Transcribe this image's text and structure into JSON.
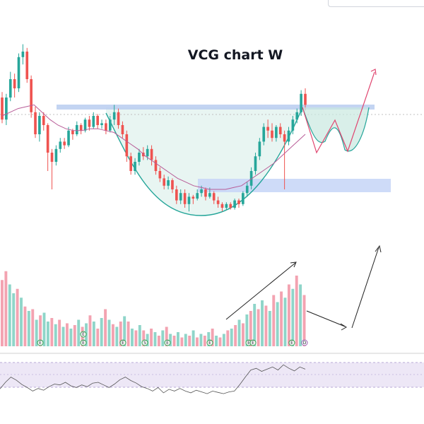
{
  "chart_data": {
    "type": "candlestick",
    "title": "VCG chart W",
    "colors": {
      "up": "#26a69a",
      "down": "#ef5350",
      "up_volume": "#8fd5c9",
      "down_volume": "#f3a3b1",
      "ma_line": "#b85c97",
      "resistance_zone": "#b9cdf0",
      "support_zone": "#c9d7f7",
      "cup_fill": "#e6f4f1",
      "cup_line": "#26a69a",
      "projection_fill": "#c9e8df",
      "projection_arrow": "#e0456f",
      "rsi_band": "#ede7f6",
      "rsi_line": "#555555"
    },
    "price": {
      "candles": [
        [
          0.7,
          0.58,
          0.73,
          0.56
        ],
        [
          0.58,
          0.7,
          0.72,
          0.55
        ],
        [
          0.7,
          0.8,
          0.84,
          0.68
        ],
        [
          0.8,
          0.75,
          0.83,
          0.7
        ],
        [
          0.75,
          0.92,
          0.94,
          0.73
        ],
        [
          0.92,
          0.95,
          0.99,
          0.88
        ],
        [
          0.95,
          0.8,
          0.97,
          0.78
        ],
        [
          0.8,
          0.62,
          0.82,
          0.59
        ],
        [
          0.62,
          0.5,
          0.65,
          0.48
        ],
        [
          0.5,
          0.6,
          0.62,
          0.46
        ],
        [
          0.6,
          0.55,
          0.62,
          0.52
        ],
        [
          0.55,
          0.4,
          0.56,
          0.3
        ],
        [
          0.4,
          0.35,
          0.42,
          0.2
        ],
        [
          0.35,
          0.42,
          0.44,
          0.33
        ],
        [
          0.42,
          0.46,
          0.48,
          0.4
        ],
        [
          0.46,
          0.44,
          0.48,
          0.42
        ],
        [
          0.44,
          0.52,
          0.54,
          0.43
        ],
        [
          0.52,
          0.5,
          0.53,
          0.47
        ],
        [
          0.5,
          0.55,
          0.57,
          0.49
        ],
        [
          0.55,
          0.52,
          0.56,
          0.5
        ],
        [
          0.52,
          0.58,
          0.59,
          0.51
        ],
        [
          0.58,
          0.54,
          0.6,
          0.52
        ],
        [
          0.54,
          0.6,
          0.62,
          0.53
        ],
        [
          0.6,
          0.55,
          0.61,
          0.53
        ],
        [
          0.55,
          0.56,
          0.58,
          0.53
        ],
        [
          0.56,
          0.52,
          0.58,
          0.5
        ],
        [
          0.52,
          0.58,
          0.6,
          0.51
        ],
        [
          0.58,
          0.62,
          0.66,
          0.55
        ],
        [
          0.62,
          0.55,
          0.64,
          0.53
        ],
        [
          0.55,
          0.5,
          0.57,
          0.48
        ],
        [
          0.5,
          0.38,
          0.52,
          0.35
        ],
        [
          0.38,
          0.3,
          0.4,
          0.28
        ],
        [
          0.3,
          0.35,
          0.37,
          0.28
        ],
        [
          0.35,
          0.4,
          0.42,
          0.33
        ],
        [
          0.4,
          0.38,
          0.43,
          0.36
        ],
        [
          0.38,
          0.42,
          0.44,
          0.36
        ],
        [
          0.42,
          0.36,
          0.44,
          0.33
        ],
        [
          0.36,
          0.3,
          0.38,
          0.28
        ],
        [
          0.3,
          0.26,
          0.32,
          0.24
        ],
        [
          0.26,
          0.22,
          0.28,
          0.2
        ],
        [
          0.22,
          0.25,
          0.27,
          0.2
        ],
        [
          0.25,
          0.2,
          0.26,
          0.18
        ],
        [
          0.2,
          0.14,
          0.22,
          0.12
        ],
        [
          0.14,
          0.18,
          0.2,
          0.12
        ],
        [
          0.18,
          0.12,
          0.2,
          0.1
        ],
        [
          0.12,
          0.16,
          0.18,
          0.08
        ],
        [
          0.16,
          0.15,
          0.17,
          0.12
        ],
        [
          0.15,
          0.18,
          0.2,
          0.14
        ],
        [
          0.18,
          0.2,
          0.22,
          0.16
        ],
        [
          0.2,
          0.16,
          0.21,
          0.14
        ],
        [
          0.16,
          0.18,
          0.21,
          0.15
        ],
        [
          0.18,
          0.14,
          0.19,
          0.12
        ],
        [
          0.14,
          0.12,
          0.16,
          0.1
        ],
        [
          0.12,
          0.1,
          0.13,
          0.08
        ],
        [
          0.1,
          0.12,
          0.13,
          0.09
        ],
        [
          0.12,
          0.1,
          0.13,
          0.09
        ],
        [
          0.1,
          0.14,
          0.15,
          0.09
        ],
        [
          0.14,
          0.12,
          0.15,
          0.1
        ],
        [
          0.12,
          0.18,
          0.19,
          0.11
        ],
        [
          0.18,
          0.22,
          0.24,
          0.16
        ],
        [
          0.22,
          0.3,
          0.32,
          0.2
        ],
        [
          0.3,
          0.38,
          0.4,
          0.28
        ],
        [
          0.38,
          0.46,
          0.48,
          0.36
        ],
        [
          0.46,
          0.54,
          0.56,
          0.44
        ],
        [
          0.54,
          0.52,
          0.58,
          0.48
        ],
        [
          0.52,
          0.48,
          0.56,
          0.46
        ],
        [
          0.48,
          0.54,
          0.55,
          0.46
        ],
        [
          0.54,
          0.5,
          0.56,
          0.48
        ],
        [
          0.5,
          0.46,
          0.52,
          0.2
        ],
        [
          0.46,
          0.52,
          0.54,
          0.44
        ],
        [
          0.52,
          0.58,
          0.6,
          0.5
        ],
        [
          0.58,
          0.62,
          0.64,
          0.56
        ],
        [
          0.62,
          0.72,
          0.74,
          0.6
        ],
        [
          0.72,
          0.66,
          0.75,
          0.63
        ]
      ],
      "moving_average": [
        0.6,
        0.62,
        0.64,
        0.65,
        0.66,
        0.62,
        0.58,
        0.55,
        0.53,
        0.52,
        0.52,
        0.53,
        0.53,
        0.52,
        0.51,
        0.48,
        0.45,
        0.42,
        0.38,
        0.35,
        0.32,
        0.29,
        0.26,
        0.24,
        0.22,
        0.21,
        0.2,
        0.2,
        0.2,
        0.21,
        0.22,
        0.25,
        0.28,
        0.31,
        0.34,
        0.38,
        0.42,
        0.46,
        0.5
      ]
    },
    "volume": {
      "bars": [
        [
          0.75,
          0
        ],
        [
          0.85,
          0
        ],
        [
          0.7,
          1
        ],
        [
          0.6,
          1
        ],
        [
          0.65,
          0
        ],
        [
          0.55,
          1
        ],
        [
          0.45,
          0
        ],
        [
          0.4,
          1
        ],
        [
          0.42,
          0
        ],
        [
          0.3,
          1
        ],
        [
          0.35,
          0
        ],
        [
          0.38,
          1
        ],
        [
          0.28,
          1
        ],
        [
          0.32,
          0
        ],
        [
          0.25,
          1
        ],
        [
          0.3,
          0
        ],
        [
          0.22,
          1
        ],
        [
          0.26,
          0
        ],
        [
          0.2,
          1
        ],
        [
          0.24,
          0
        ],
        [
          0.3,
          1
        ],
        [
          0.22,
          0
        ],
        [
          0.26,
          1
        ],
        [
          0.35,
          0
        ],
        [
          0.28,
          1
        ],
        [
          0.2,
          0
        ],
        [
          0.32,
          1
        ],
        [
          0.42,
          0
        ],
        [
          0.3,
          1
        ],
        [
          0.25,
          0
        ],
        [
          0.22,
          1
        ],
        [
          0.28,
          0
        ],
        [
          0.34,
          1
        ],
        [
          0.28,
          0
        ],
        [
          0.2,
          1
        ],
        [
          0.18,
          0
        ],
        [
          0.24,
          1
        ],
        [
          0.18,
          0
        ],
        [
          0.14,
          1
        ],
        [
          0.2,
          0
        ],
        [
          0.16,
          1
        ],
        [
          0.12,
          0
        ],
        [
          0.18,
          1
        ],
        [
          0.22,
          0
        ],
        [
          0.14,
          1
        ],
        [
          0.12,
          0
        ],
        [
          0.16,
          1
        ],
        [
          0.1,
          0
        ],
        [
          0.14,
          1
        ],
        [
          0.12,
          0
        ],
        [
          0.18,
          1
        ],
        [
          0.1,
          0
        ],
        [
          0.14,
          1
        ],
        [
          0.12,
          0
        ],
        [
          0.16,
          1
        ],
        [
          0.2,
          0
        ],
        [
          0.12,
          1
        ],
        [
          0.1,
          0
        ],
        [
          0.14,
          1
        ],
        [
          0.18,
          0
        ],
        [
          0.2,
          1
        ],
        [
          0.24,
          0
        ],
        [
          0.3,
          1
        ],
        [
          0.26,
          0
        ],
        [
          0.36,
          1
        ],
        [
          0.4,
          0
        ],
        [
          0.48,
          1
        ],
        [
          0.42,
          0
        ],
        [
          0.52,
          1
        ],
        [
          0.46,
          0
        ],
        [
          0.4,
          1
        ],
        [
          0.58,
          0
        ],
        [
          0.5,
          1
        ],
        [
          0.62,
          0
        ],
        [
          0.55,
          1
        ],
        [
          0.7,
          0
        ],
        [
          0.65,
          1
        ],
        [
          0.8,
          0
        ],
        [
          0.7,
          1
        ],
        [
          0.58,
          0
        ]
      ],
      "markers": [
        {
          "label": "E",
          "type": "earnings"
        },
        {
          "label": "E",
          "type": "earnings"
        },
        {
          "label": "E",
          "type": "earnings"
        },
        {
          "label": "E",
          "type": "earnings"
        },
        {
          "label": "S",
          "type": "split"
        },
        {
          "label": "E",
          "type": "earnings"
        },
        {
          "label": "E",
          "type": "earnings"
        },
        {
          "label": "E",
          "type": "earnings"
        },
        {
          "label": "E",
          "type": "earnings"
        },
        {
          "label": "E",
          "type": "earnings"
        },
        {
          "label": "D",
          "type": "dividend"
        }
      ]
    },
    "rsi": {
      "values": [
        0.35,
        0.5,
        0.62,
        0.55,
        0.45,
        0.38,
        0.3,
        0.36,
        0.32,
        0.4,
        0.46,
        0.44,
        0.5,
        0.42,
        0.38,
        0.44,
        0.4,
        0.48,
        0.5,
        0.44,
        0.38,
        0.46,
        0.56,
        0.62,
        0.54,
        0.48,
        0.4,
        0.36,
        0.3,
        0.38,
        0.26,
        0.34,
        0.3,
        0.36,
        0.3,
        0.26,
        0.32,
        0.28,
        0.24,
        0.3,
        0.27,
        0.24,
        0.28,
        0.3,
        0.45,
        0.62,
        0.78,
        0.82,
        0.75,
        0.8,
        0.85,
        0.78,
        0.9,
        0.82,
        0.76,
        0.85,
        0.8
      ]
    },
    "annotations": {
      "cup_shape": "cup",
      "projection": "W pattern",
      "trend_arrows": 2
    },
    "grid": false
  }
}
